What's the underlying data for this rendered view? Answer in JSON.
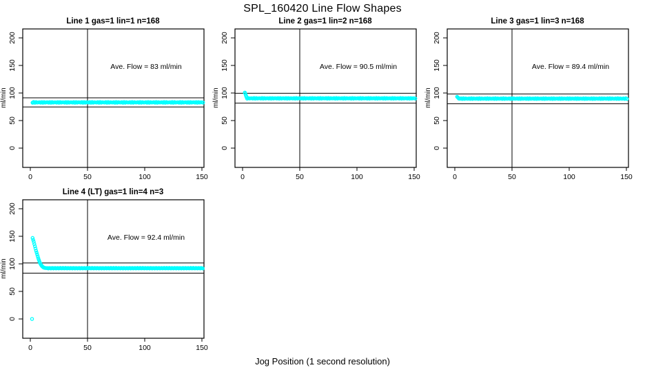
{
  "figure": {
    "title": "SPL_160420  Line Flow Shapes",
    "xlabel": "Jog Position (1 second resolution)"
  },
  "chart_data": {
    "type": "scatter",
    "title": "SPL_160420  Line Flow Shapes",
    "xlabel": "Jog Position (1 second resolution)",
    "point_color": "#00ffff",
    "axis_color": "#000000",
    "background": "#ffffff",
    "legend": null,
    "grid": false,
    "panels": [
      {
        "title": "Line 1 gas=1 lin=1 n=168",
        "annotation": "Ave. Flow =  83  ml/min",
        "ave_flow": 83,
        "ylabel": "ml/min",
        "xlim": [
          0,
          155
        ],
        "ylim": [
          0,
          200
        ],
        "xticks": [
          0,
          50,
          100,
          150
        ],
        "yticks": [
          0,
          50,
          100,
          150,
          200
        ],
        "ref_lines": [
          91.3,
          74.7
        ],
        "vline": 50,
        "points": [
          [
            2,
            82.4
          ],
          [
            2.6,
            83.4
          ]
        ],
        "runs": [
          {
            "x0": 2,
            "x1": 151,
            "step": 1,
            "y": 83,
            "jitter": 0.7
          }
        ]
      },
      {
        "title": "Line 2 gas=1 lin=2 n=168",
        "annotation": "Ave. Flow =  90.5  ml/min",
        "ave_flow": 90.5,
        "ylabel": "ml/min",
        "xlim": [
          0,
          155
        ],
        "ylim": [
          0,
          200
        ],
        "xticks": [
          0,
          50,
          100,
          150
        ],
        "yticks": [
          0,
          50,
          100,
          150,
          200
        ],
        "ref_lines": [
          99.6,
          81.5
        ],
        "vline": 50,
        "points": [
          [
            2,
            100.8
          ],
          [
            2.4,
            99
          ],
          [
            2.8,
            96.5
          ],
          [
            3.2,
            94
          ],
          [
            3.6,
            92
          ]
        ],
        "runs": [
          {
            "x0": 4,
            "x1": 151,
            "step": 1,
            "y": 90.3,
            "jitter": 0.6
          }
        ]
      },
      {
        "title": "Line 3 gas=1 lin=3 n=168",
        "annotation": "Ave. Flow =  89.4  ml/min",
        "ave_flow": 89.4,
        "ylabel": "ml/min",
        "xlim": [
          0,
          155
        ],
        "ylim": [
          0,
          200
        ],
        "xticks": [
          0,
          50,
          100,
          150
        ],
        "yticks": [
          0,
          50,
          100,
          150,
          200
        ],
        "ref_lines": [
          98.3,
          80.5
        ],
        "vline": 50,
        "points": [
          [
            2,
            93.2
          ],
          [
            2.6,
            92
          ],
          [
            3.2,
            91
          ]
        ],
        "runs": [
          {
            "x0": 3.5,
            "x1": 151,
            "step": 1,
            "y": 89.8,
            "jitter": 0.6
          }
        ]
      },
      {
        "title": "Line 4 (LT) gas=1 lin=4 n=3",
        "annotation": "Ave. Flow =  92.4  ml/min",
        "ave_flow": 92.4,
        "ylabel": "ml/min",
        "xlim": [
          0,
          155
        ],
        "ylim": [
          0,
          200
        ],
        "xticks": [
          0,
          50,
          100,
          150
        ],
        "yticks": [
          0,
          50,
          100,
          150,
          200
        ],
        "ref_lines": [
          101.6,
          83.2
        ],
        "vline": 50,
        "points": [
          [
            1.5,
            0
          ],
          [
            2,
            147
          ],
          [
            2.5,
            143.5
          ],
          [
            3,
            140
          ],
          [
            3.5,
            136
          ],
          [
            4,
            132
          ],
          [
            4.5,
            128
          ],
          [
            5,
            124
          ],
          [
            5.5,
            120.5
          ],
          [
            6,
            117
          ],
          [
            6.5,
            113.5
          ],
          [
            7,
            110
          ],
          [
            7.5,
            107
          ],
          [
            8,
            104
          ],
          [
            8.5,
            101.5
          ],
          [
            9,
            99.5
          ],
          [
            9.5,
            97.8
          ],
          [
            10,
            96.4
          ],
          [
            10.5,
            95.2
          ],
          [
            11,
            94.3
          ],
          [
            11.5,
            93.6
          ],
          [
            12,
            93.1
          ],
          [
            12.5,
            92.8
          ],
          [
            13,
            92.5
          ],
          [
            14,
            92.3
          ],
          [
            15,
            92.2
          ]
        ],
        "runs": [
          {
            "x0": 15,
            "x1": 151,
            "step": 0.75,
            "y": 92.1,
            "jitter": 0.5
          }
        ]
      }
    ]
  }
}
